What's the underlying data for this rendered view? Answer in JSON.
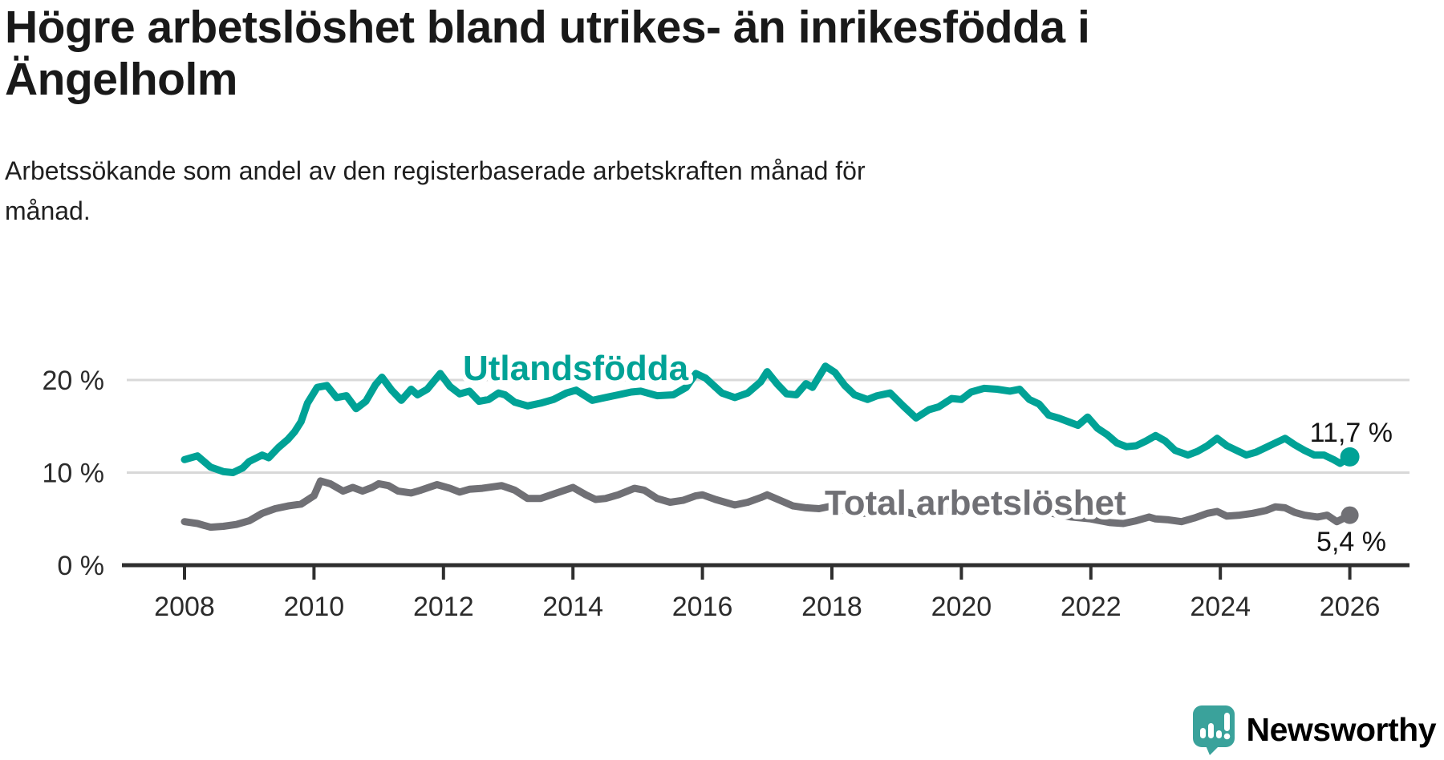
{
  "header": {
    "title_lines": [
      "Högre arbetslöshet bland utrikes- än inrikesfödda i",
      "Ängelholm"
    ],
    "subtitle_lines": [
      "Arbetssökande som andel av den registerbaserade arbetskraften månad för",
      "månad."
    ]
  },
  "footer": {
    "brand": "Newsworthy"
  },
  "colors": {
    "teal": "#00a296",
    "gray": "#707075",
    "grid": "#d8d8d8",
    "axis": "#2f2f2f",
    "text": "#191919",
    "logo_teal": "#3aa29b"
  },
  "chart_data": {
    "type": "line",
    "title": "Högre arbetslöshet bland utrikes- än inrikesfödda i Ängelholm",
    "subtitle": "Arbetssökande som andel av den registerbaserade arbetskraften månad för månad.",
    "xlabel": "",
    "ylabel": "",
    "xlim": [
      2007.0,
      2026.95
    ],
    "ylim": [
      0,
      23
    ],
    "grid": "horizontal",
    "legend_position": "inline-labels",
    "x_ticks": [
      2008,
      2010,
      2012,
      2014,
      2016,
      2018,
      2020,
      2022,
      2024,
      2026
    ],
    "x_tick_labels": [
      "2008",
      "2010",
      "2012",
      "2014",
      "2016",
      "2018",
      "2020",
      "2022",
      "2024",
      "2026"
    ],
    "y_ticks": [
      0,
      10,
      20
    ],
    "y_tick_labels": [
      "0 %",
      "10 %",
      "20 %"
    ],
    "y_gridlines": [
      10,
      20
    ],
    "series": [
      {
        "name": "Utlandsfödda",
        "color": "#00a296",
        "end_value": 11.7,
        "end_label": "11,7 %",
        "points": [
          [
            2008.0,
            11.4
          ],
          [
            2008.2,
            11.8
          ],
          [
            2008.4,
            10.6
          ],
          [
            2008.6,
            10.1
          ],
          [
            2008.75,
            10.0
          ],
          [
            2008.9,
            10.5
          ],
          [
            2009.0,
            11.2
          ],
          [
            2009.2,
            11.9
          ],
          [
            2009.3,
            11.6
          ],
          [
            2009.45,
            12.7
          ],
          [
            2009.6,
            13.6
          ],
          [
            2009.7,
            14.4
          ],
          [
            2009.8,
            15.5
          ],
          [
            2009.9,
            17.5
          ],
          [
            2010.05,
            19.2
          ],
          [
            2010.2,
            19.4
          ],
          [
            2010.35,
            18.1
          ],
          [
            2010.5,
            18.3
          ],
          [
            2010.65,
            16.9
          ],
          [
            2010.8,
            17.7
          ],
          [
            2010.95,
            19.5
          ],
          [
            2011.05,
            20.3
          ],
          [
            2011.2,
            18.9
          ],
          [
            2011.35,
            17.8
          ],
          [
            2011.5,
            19.0
          ],
          [
            2011.6,
            18.4
          ],
          [
            2011.75,
            19.0
          ],
          [
            2011.95,
            20.7
          ],
          [
            2012.1,
            19.3
          ],
          [
            2012.25,
            18.5
          ],
          [
            2012.4,
            18.8
          ],
          [
            2012.55,
            17.7
          ],
          [
            2012.7,
            17.9
          ],
          [
            2012.85,
            18.6
          ],
          [
            2012.95,
            18.4
          ],
          [
            2013.1,
            17.6
          ],
          [
            2013.3,
            17.2
          ],
          [
            2013.5,
            17.5
          ],
          [
            2013.7,
            17.9
          ],
          [
            2013.9,
            18.6
          ],
          [
            2014.05,
            18.9
          ],
          [
            2014.3,
            17.8
          ],
          [
            2014.5,
            18.1
          ],
          [
            2014.7,
            18.4
          ],
          [
            2014.9,
            18.7
          ],
          [
            2015.05,
            18.8
          ],
          [
            2015.3,
            18.3
          ],
          [
            2015.55,
            18.4
          ],
          [
            2015.75,
            19.2
          ],
          [
            2015.9,
            20.7
          ],
          [
            2016.05,
            20.2
          ],
          [
            2016.3,
            18.6
          ],
          [
            2016.5,
            18.1
          ],
          [
            2016.7,
            18.6
          ],
          [
            2016.9,
            19.8
          ],
          [
            2017.0,
            20.9
          ],
          [
            2017.15,
            19.6
          ],
          [
            2017.3,
            18.5
          ],
          [
            2017.45,
            18.4
          ],
          [
            2017.6,
            19.6
          ],
          [
            2017.7,
            19.2
          ],
          [
            2017.9,
            21.5
          ],
          [
            2018.05,
            20.8
          ],
          [
            2018.2,
            19.4
          ],
          [
            2018.35,
            18.4
          ],
          [
            2018.55,
            17.9
          ],
          [
            2018.7,
            18.3
          ],
          [
            2018.9,
            18.6
          ],
          [
            2019.1,
            17.2
          ],
          [
            2019.3,
            15.9
          ],
          [
            2019.5,
            16.8
          ],
          [
            2019.65,
            17.1
          ],
          [
            2019.85,
            18.0
          ],
          [
            2020.0,
            17.9
          ],
          [
            2020.15,
            18.7
          ],
          [
            2020.35,
            19.1
          ],
          [
            2020.55,
            19.0
          ],
          [
            2020.75,
            18.8
          ],
          [
            2020.9,
            19.0
          ],
          [
            2021.05,
            17.9
          ],
          [
            2021.2,
            17.4
          ],
          [
            2021.35,
            16.2
          ],
          [
            2021.5,
            15.9
          ],
          [
            2021.65,
            15.5
          ],
          [
            2021.8,
            15.1
          ],
          [
            2021.95,
            16.0
          ],
          [
            2022.1,
            14.8
          ],
          [
            2022.25,
            14.1
          ],
          [
            2022.4,
            13.2
          ],
          [
            2022.55,
            12.8
          ],
          [
            2022.7,
            12.9
          ],
          [
            2022.85,
            13.4
          ],
          [
            2023.0,
            14.0
          ],
          [
            2023.15,
            13.4
          ],
          [
            2023.3,
            12.4
          ],
          [
            2023.5,
            11.9
          ],
          [
            2023.65,
            12.3
          ],
          [
            2023.8,
            12.9
          ],
          [
            2023.95,
            13.7
          ],
          [
            2024.1,
            12.9
          ],
          [
            2024.25,
            12.4
          ],
          [
            2024.4,
            11.9
          ],
          [
            2024.55,
            12.2
          ],
          [
            2024.7,
            12.7
          ],
          [
            2024.85,
            13.2
          ],
          [
            2025.0,
            13.7
          ],
          [
            2025.15,
            13.0
          ],
          [
            2025.3,
            12.4
          ],
          [
            2025.45,
            11.9
          ],
          [
            2025.6,
            11.9
          ],
          [
            2025.75,
            11.4
          ],
          [
            2025.85,
            11.0
          ],
          [
            2026.0,
            11.7
          ]
        ]
      },
      {
        "name": "Total arbetslöshet",
        "color": "#707075",
        "end_value": 5.4,
        "end_label": "5,4 %",
        "points": [
          [
            2008.0,
            4.7
          ],
          [
            2008.2,
            4.5
          ],
          [
            2008.4,
            4.1
          ],
          [
            2008.6,
            4.2
          ],
          [
            2008.8,
            4.4
          ],
          [
            2009.0,
            4.8
          ],
          [
            2009.2,
            5.6
          ],
          [
            2009.4,
            6.1
          ],
          [
            2009.6,
            6.4
          ],
          [
            2009.8,
            6.6
          ],
          [
            2010.0,
            7.5
          ],
          [
            2010.1,
            9.1
          ],
          [
            2010.25,
            8.8
          ],
          [
            2010.45,
            8.0
          ],
          [
            2010.6,
            8.4
          ],
          [
            2010.75,
            8.0
          ],
          [
            2010.9,
            8.4
          ],
          [
            2011.0,
            8.8
          ],
          [
            2011.15,
            8.6
          ],
          [
            2011.3,
            8.0
          ],
          [
            2011.5,
            7.8
          ],
          [
            2011.65,
            8.1
          ],
          [
            2011.9,
            8.7
          ],
          [
            2012.1,
            8.3
          ],
          [
            2012.25,
            7.9
          ],
          [
            2012.4,
            8.2
          ],
          [
            2012.6,
            8.3
          ],
          [
            2012.9,
            8.6
          ],
          [
            2013.1,
            8.1
          ],
          [
            2013.3,
            7.2
          ],
          [
            2013.5,
            7.2
          ],
          [
            2013.75,
            7.8
          ],
          [
            2014.0,
            8.4
          ],
          [
            2014.2,
            7.6
          ],
          [
            2014.35,
            7.1
          ],
          [
            2014.5,
            7.2
          ],
          [
            2014.7,
            7.6
          ],
          [
            2014.95,
            8.3
          ],
          [
            2015.1,
            8.1
          ],
          [
            2015.3,
            7.2
          ],
          [
            2015.5,
            6.8
          ],
          [
            2015.7,
            7.0
          ],
          [
            2015.9,
            7.5
          ],
          [
            2016.0,
            7.6
          ],
          [
            2016.2,
            7.1
          ],
          [
            2016.5,
            6.5
          ],
          [
            2016.7,
            6.8
          ],
          [
            2016.9,
            7.3
          ],
          [
            2017.0,
            7.6
          ],
          [
            2017.2,
            7.0
          ],
          [
            2017.4,
            6.4
          ],
          [
            2017.6,
            6.2
          ],
          [
            2017.8,
            6.1
          ],
          [
            2018.0,
            6.4
          ],
          [
            2018.2,
            5.9
          ],
          [
            2018.5,
            5.6
          ],
          [
            2018.8,
            5.8
          ],
          [
            2019.0,
            6.0
          ],
          [
            2019.3,
            5.5
          ],
          [
            2019.6,
            5.6
          ],
          [
            2019.9,
            5.9
          ],
          [
            2020.2,
            6.4
          ],
          [
            2020.4,
            6.8
          ],
          [
            2020.6,
            6.6
          ],
          [
            2020.9,
            6.3
          ],
          [
            2021.1,
            6.1
          ],
          [
            2021.4,
            5.6
          ],
          [
            2021.7,
            5.2
          ],
          [
            2022.0,
            5.0
          ],
          [
            2022.3,
            4.6
          ],
          [
            2022.5,
            4.5
          ],
          [
            2022.7,
            4.8
          ],
          [
            2022.9,
            5.2
          ],
          [
            2023.0,
            5.0
          ],
          [
            2023.2,
            4.9
          ],
          [
            2023.4,
            4.7
          ],
          [
            2023.6,
            5.1
          ],
          [
            2023.8,
            5.6
          ],
          [
            2023.95,
            5.8
          ],
          [
            2024.1,
            5.3
          ],
          [
            2024.3,
            5.4
          ],
          [
            2024.5,
            5.6
          ],
          [
            2024.7,
            5.9
          ],
          [
            2024.85,
            6.3
          ],
          [
            2025.0,
            6.2
          ],
          [
            2025.15,
            5.7
          ],
          [
            2025.3,
            5.4
          ],
          [
            2025.5,
            5.2
          ],
          [
            2025.65,
            5.4
          ],
          [
            2025.8,
            4.7
          ],
          [
            2026.0,
            5.4
          ]
        ]
      }
    ]
  }
}
